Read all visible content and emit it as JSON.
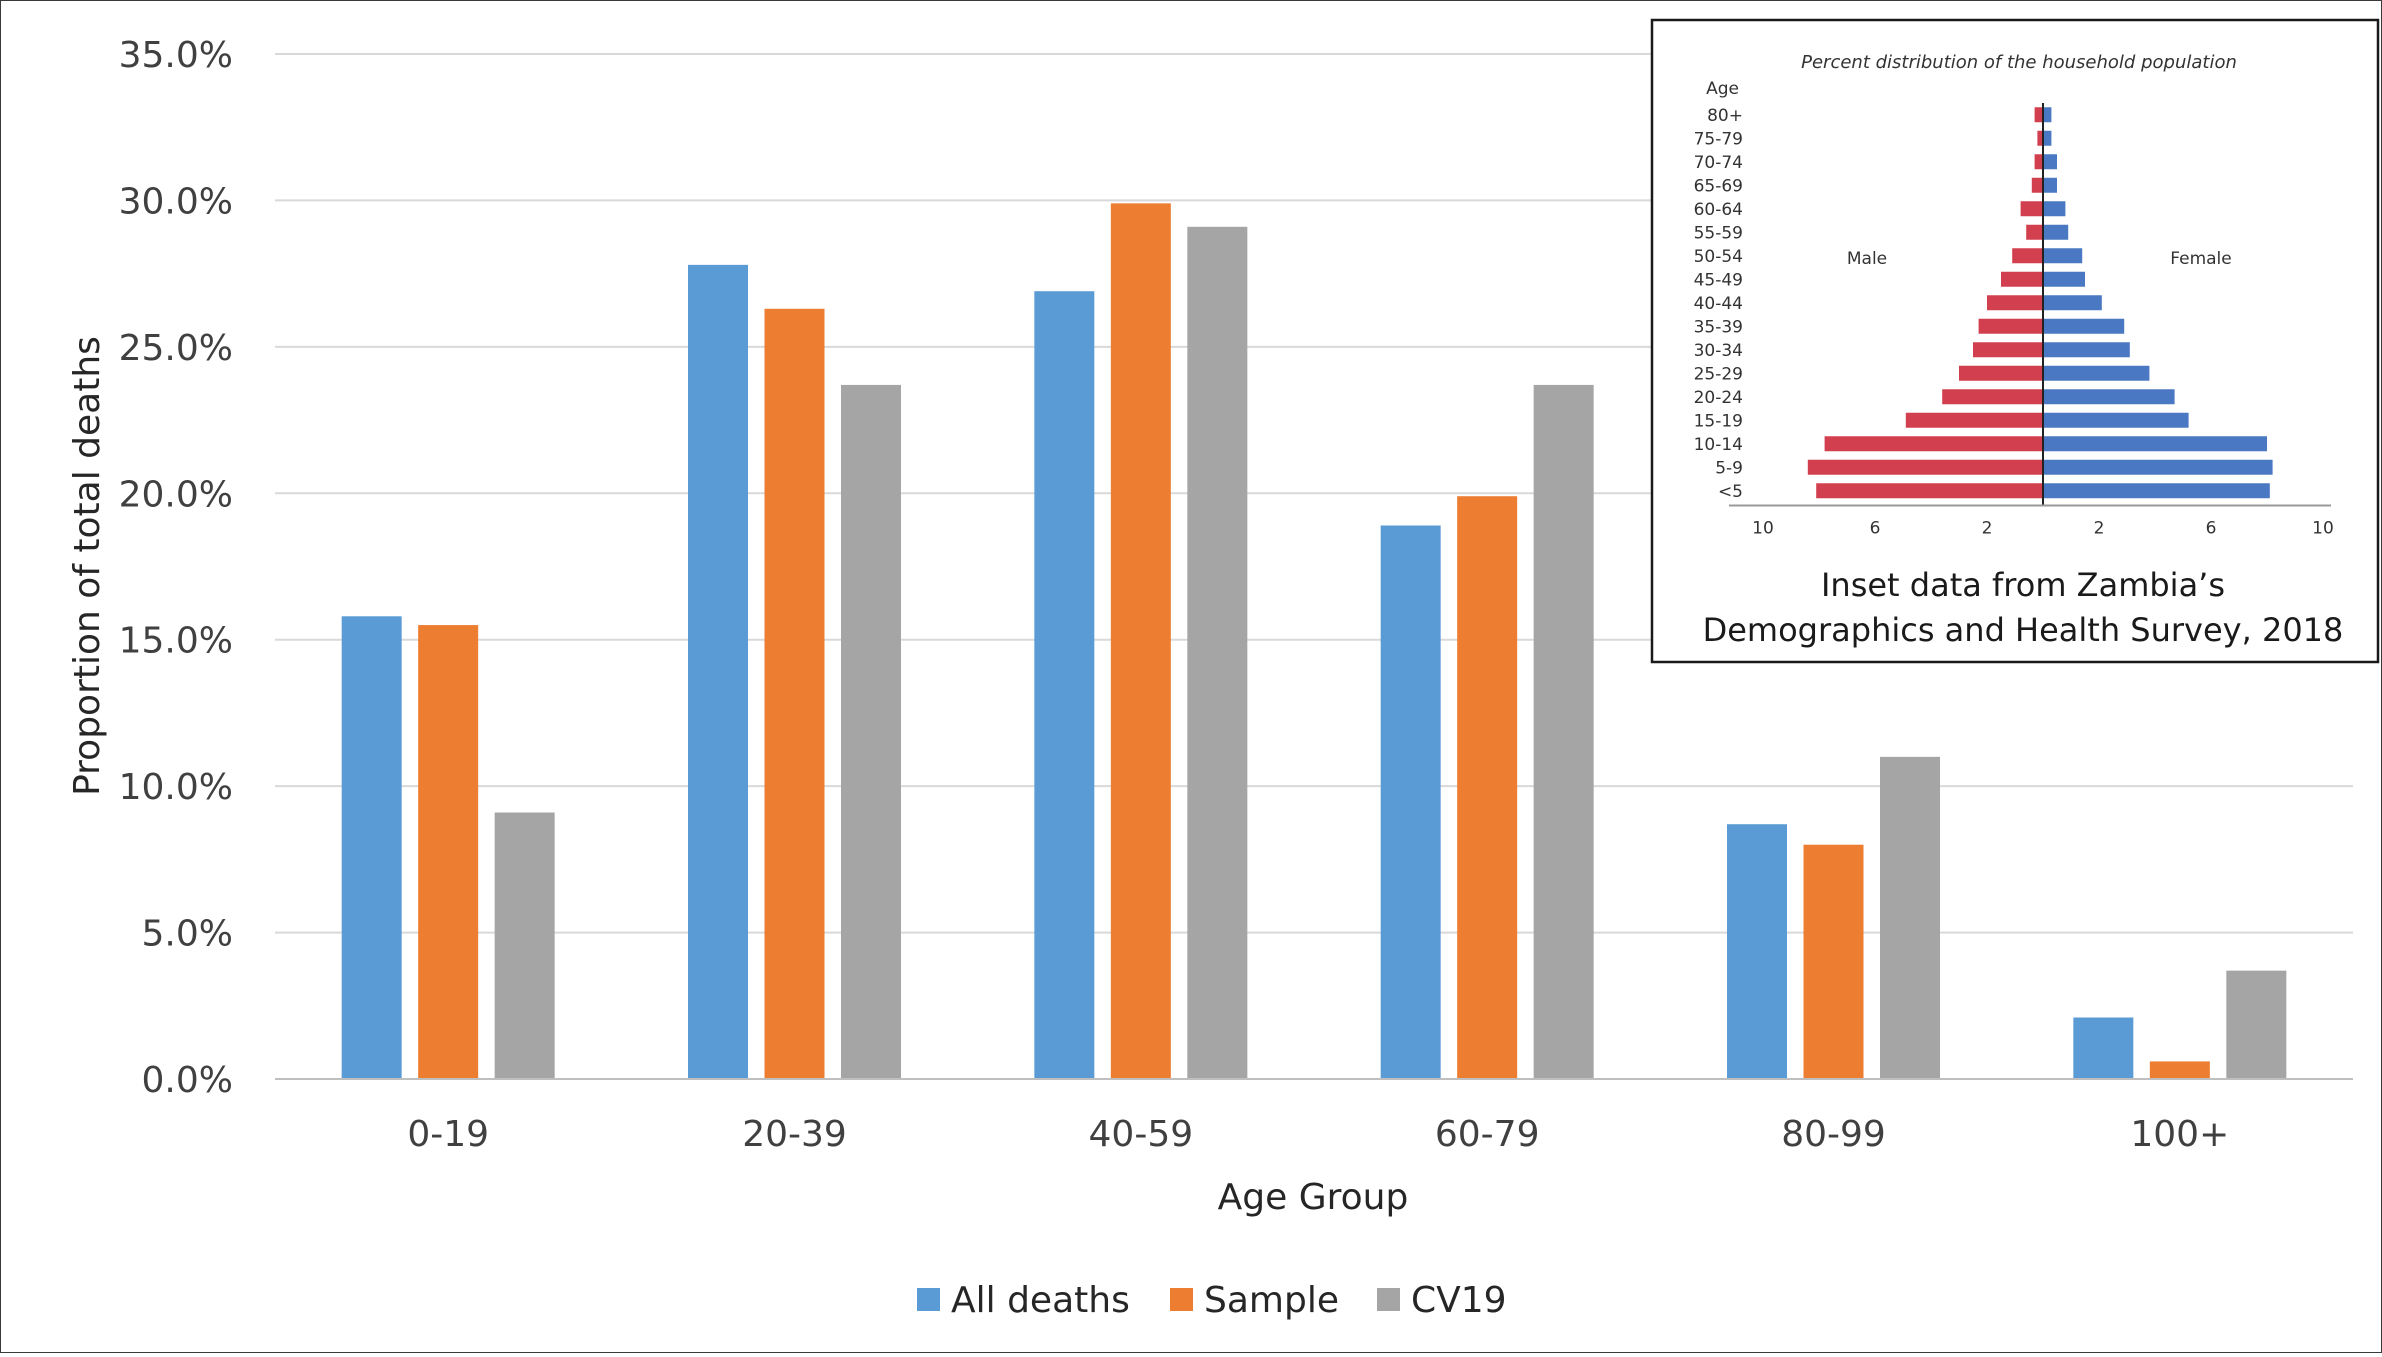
{
  "chart_data": [
    {
      "type": "bar",
      "title": "",
      "xlabel": "Age Group",
      "ylabel": "Proportion of total deaths",
      "categories": [
        "0-19",
        "20-39",
        "40-59",
        "60-79",
        "80-99",
        "100+"
      ],
      "ylim": [
        0,
        35
      ],
      "yticks": [
        "0.0%",
        "5.0%",
        "10.0%",
        "15.0%",
        "20.0%",
        "25.0%",
        "30.0%",
        "35.0%"
      ],
      "grid": true,
      "legend": "bottom",
      "series": [
        {
          "name": "All deaths",
          "color": "#5b9bd5",
          "values": [
            15.8,
            27.8,
            26.9,
            18.9,
            8.7,
            2.1
          ]
        },
        {
          "name": "Sample",
          "color": "#ed7d31",
          "values": [
            15.5,
            26.3,
            29.9,
            19.9,
            8.0,
            0.6
          ]
        },
        {
          "name": "CV19",
          "color": "#a5a5a5",
          "values": [
            9.1,
            23.7,
            29.1,
            23.7,
            11.0,
            3.7
          ]
        }
      ]
    },
    {
      "type": "bar",
      "orientation": "horizontal",
      "title": "Percent distribution of the household population",
      "ylabel": "Age",
      "categories": [
        "80+",
        "75-79",
        "70-74",
        "65-69",
        "60-64",
        "55-59",
        "50-54",
        "45-49",
        "40-44",
        "35-39",
        "30-34",
        "25-29",
        "20-24",
        "15-19",
        "10-14",
        "5-9",
        "<5"
      ],
      "xticks": [
        "10",
        "6",
        "2",
        "2",
        "6",
        "10"
      ],
      "xlim": [
        -10,
        10
      ],
      "legend": "inline",
      "series": [
        {
          "name": "Male",
          "color": "#d2404f",
          "values": [
            0.3,
            0.2,
            0.3,
            0.4,
            0.8,
            0.6,
            1.1,
            1.5,
            2.0,
            2.3,
            2.5,
            3.0,
            3.6,
            4.9,
            7.8,
            8.4,
            8.1
          ]
        },
        {
          "name": "Female",
          "color": "#4a78c2",
          "values": [
            0.3,
            0.3,
            0.5,
            0.5,
            0.8,
            0.9,
            1.4,
            1.5,
            2.1,
            2.9,
            3.1,
            3.8,
            4.7,
            5.2,
            8.0,
            8.2,
            8.1
          ]
        }
      ],
      "caption_line1": "Inset data from Zambia’s",
      "caption_line2": "Demographics and Health Survey, 2018"
    }
  ]
}
